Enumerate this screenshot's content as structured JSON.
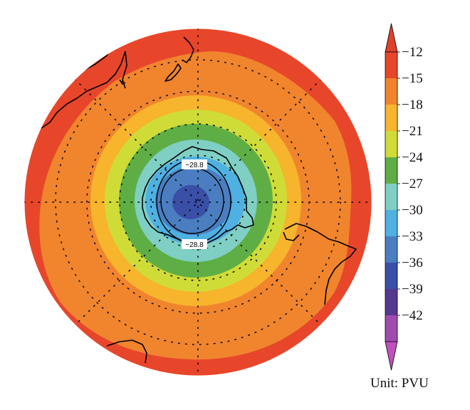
{
  "colorbar": {
    "ticks": [
      "−12",
      "−15",
      "−18",
      "−21",
      "−24",
      "−27",
      "−30",
      "−33",
      "−36",
      "−39",
      "−42"
    ],
    "colors": [
      "#e8462b",
      "#f0852e",
      "#f7b42d",
      "#cfdc37",
      "#5fae45",
      "#7fcfc4",
      "#4fb0e2",
      "#4a7ec0",
      "#3a4fa6",
      "#55388f",
      "#a04bb0"
    ],
    "top_arrow_color": "#e0412a",
    "bottom_arrow_color": "#c24fbe"
  },
  "unit_label": "Unit: PVU",
  "contour_labels": [
    "−28.8",
    "−28.8"
  ],
  "map_colors": {
    "outer": "#e8462b",
    "band_15": "#f0852e",
    "band_18": "#f7b42d",
    "band_21": "#cfdc37",
    "band_24": "#5fae45",
    "band_27": "#7fcfc4",
    "band_30": "#4fb0e2",
    "band_33": "#4a7ec0",
    "band_36": "#3a4fa6"
  },
  "grid": {
    "parallels_shown": true,
    "meridians_shown": true
  }
}
